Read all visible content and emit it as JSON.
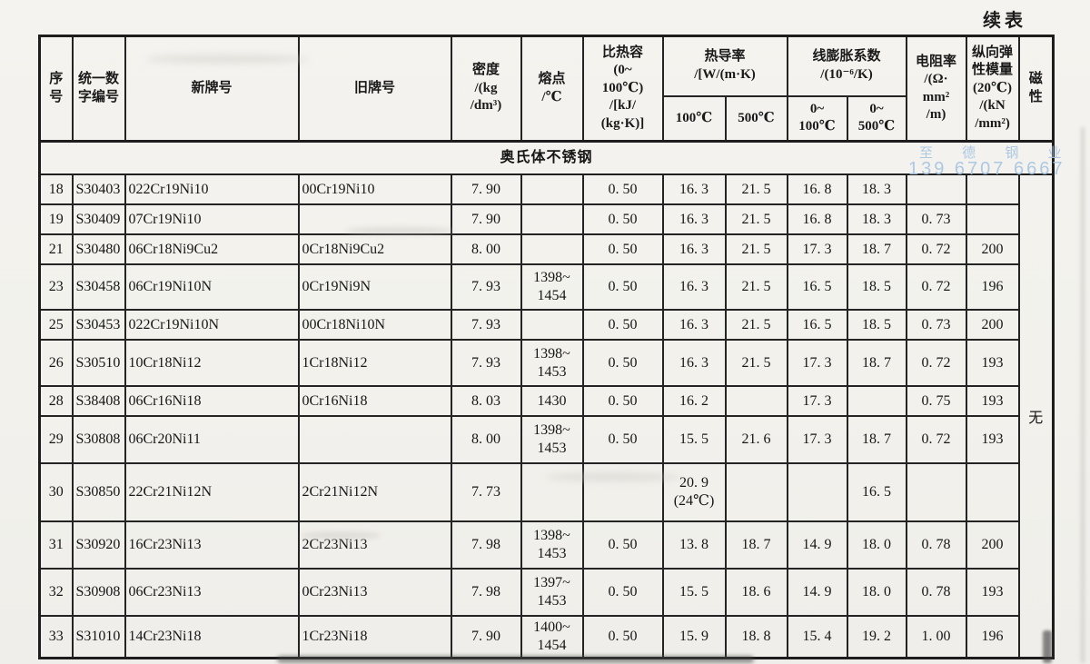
{
  "page": {
    "continued_label": "续表",
    "section_title": "奥氏体不锈钢"
  },
  "watermark": {
    "line1": "至 德 钢 业",
    "line2": "139 6707 6667",
    "color": "#a6c4e2"
  },
  "table": {
    "header": {
      "seq": "序\n号",
      "code": "统一数\n字编号",
      "new_grade": "新牌号",
      "old_grade": "旧牌号",
      "density": "密度\n/(kg\n/dm³)",
      "melting_point": "熔点\n/℃",
      "specific_heat": "比热容\n(0~\n100℃)\n/[kJ/\n(kg·K)]",
      "thermal_conductivity": "热导率\n/[W/(m·K)",
      "tc_sub": {
        "t100": "100℃",
        "t500": "500℃"
      },
      "expansion": "线膨胀系数\n/(10⁻⁶/K)",
      "exp_sub": {
        "r100": "0~\n100℃",
        "r500": "0~\n500℃"
      },
      "resistivity": "电阻率\n/(Ω·\nmm²\n/m)",
      "modulus": "纵向弹\n性模量\n(20℃)\n/(kN\n/mm²)",
      "magnetism": "磁\n性"
    },
    "magnetism_value": "无",
    "rows": [
      [
        "18",
        "S30403",
        "022Cr19Ni10",
        "00Cr19Ni10",
        "7. 90",
        "",
        "0. 50",
        "16. 3",
        "21. 5",
        "16. 8",
        "18. 3",
        "",
        ""
      ],
      [
        "19",
        "S30409",
        "07Cr19Ni10",
        "",
        "7. 90",
        "",
        "0. 50",
        "16. 3",
        "21. 5",
        "16. 8",
        "18. 3",
        "0. 73",
        ""
      ],
      [
        "21",
        "S30480",
        "06Cr18Ni9Cu2",
        "0Cr18Ni9Cu2",
        "8. 00",
        "",
        "0. 50",
        "16. 3",
        "21. 5",
        "17. 3",
        "18. 7",
        "0. 72",
        "200"
      ],
      [
        "23",
        "S30458",
        "06Cr19Ni10N",
        "0Cr19Ni9N",
        "7. 93",
        "1398~\n1454",
        "0. 50",
        "16. 3",
        "21. 5",
        "16. 5",
        "18. 5",
        "0. 72",
        "196"
      ],
      [
        "25",
        "S30453",
        "022Cr19Ni10N",
        "00Cr18Ni10N",
        "7. 93",
        "",
        "0. 50",
        "16. 3",
        "21. 5",
        "16. 5",
        "18. 5",
        "0. 73",
        "200"
      ],
      [
        "26",
        "S30510",
        "10Cr18Ni12",
        "1Cr18Ni12",
        "7. 93",
        "1398~\n1453",
        "0. 50",
        "16. 3",
        "21. 5",
        "17. 3",
        "18. 7",
        "0. 72",
        "193"
      ],
      [
        "28",
        "S38408",
        "06Cr16Ni18",
        "0Cr16Ni18",
        "8. 03",
        "1430",
        "0. 50",
        "16. 2",
        "",
        "17. 3",
        "",
        "0. 75",
        "193"
      ],
      [
        "29",
        "S30808",
        "06Cr20Ni11",
        "",
        "8. 00",
        "1398~\n1453",
        "0. 50",
        "15. 5",
        "21. 6",
        "17. 3",
        "18. 7",
        "0. 72",
        "193"
      ],
      [
        "30",
        "S30850",
        "22Cr21Ni12N",
        "2Cr21Ni12N",
        "7. 73",
        "",
        "",
        "20. 9\n(24℃)",
        "",
        "",
        "16. 5",
        "",
        ""
      ],
      [
        "31",
        "S30920",
        "16Cr23Ni13",
        "2Cr23Ni13",
        "7. 98",
        "1398~\n1453",
        "0. 50",
        "13. 8",
        "18. 7",
        "14. 9",
        "18. 0",
        "0. 78",
        "200"
      ],
      [
        "32",
        "S30908",
        "06Cr23Ni13",
        "0Cr23Ni13",
        "7. 98",
        "1397~\n1453",
        "0. 50",
        "15. 5",
        "18. 6",
        "14. 9",
        "18. 0",
        "0. 78",
        "193"
      ],
      [
        "33",
        "S31010",
        "14Cr23Ni18",
        "1Cr23Ni18",
        "7. 90",
        "1400~\n1454",
        "0. 50",
        "15. 9",
        "18. 8",
        "15. 4",
        "19. 2",
        "1. 00",
        "196"
      ]
    ]
  }
}
